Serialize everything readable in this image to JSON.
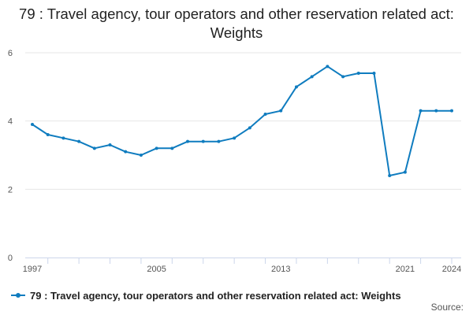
{
  "chart_data": {
    "type": "line",
    "title": "79 : Travel agency, tour operators and other reservation related act: Weights",
    "xlabel": "",
    "ylabel": "",
    "x": [
      1997,
      1998,
      1999,
      2000,
      2001,
      2002,
      2003,
      2004,
      2005,
      2006,
      2007,
      2008,
      2009,
      2010,
      2011,
      2012,
      2013,
      2014,
      2015,
      2016,
      2017,
      2018,
      2019,
      2020,
      2021,
      2022,
      2023,
      2024
    ],
    "series": [
      {
        "name": "79 : Travel agency, tour operators and other reservation related act: Weights",
        "values": [
          3.9,
          3.6,
          3.5,
          3.4,
          3.2,
          3.3,
          3.1,
          3.0,
          3.2,
          3.2,
          3.4,
          3.4,
          3.4,
          3.5,
          3.8,
          4.2,
          4.3,
          5.0,
          5.3,
          5.6,
          5.3,
          5.4,
          5.4,
          2.4,
          2.5,
          4.3,
          4.3,
          4.3
        ]
      }
    ],
    "xlim": [
      1997,
      2024
    ],
    "ylim": [
      0,
      6
    ],
    "yticks": [
      0,
      2,
      4,
      6
    ],
    "xtick_labels": [
      "1997",
      "2005",
      "2013",
      "2021",
      "2024"
    ],
    "grid": "horizontal",
    "legend_position": "bottom-left"
  },
  "source_label": "Source:",
  "colors": {
    "series": "#0f7cbf",
    "grid": "#e6e6e6",
    "axis": "#ccd6eb"
  }
}
